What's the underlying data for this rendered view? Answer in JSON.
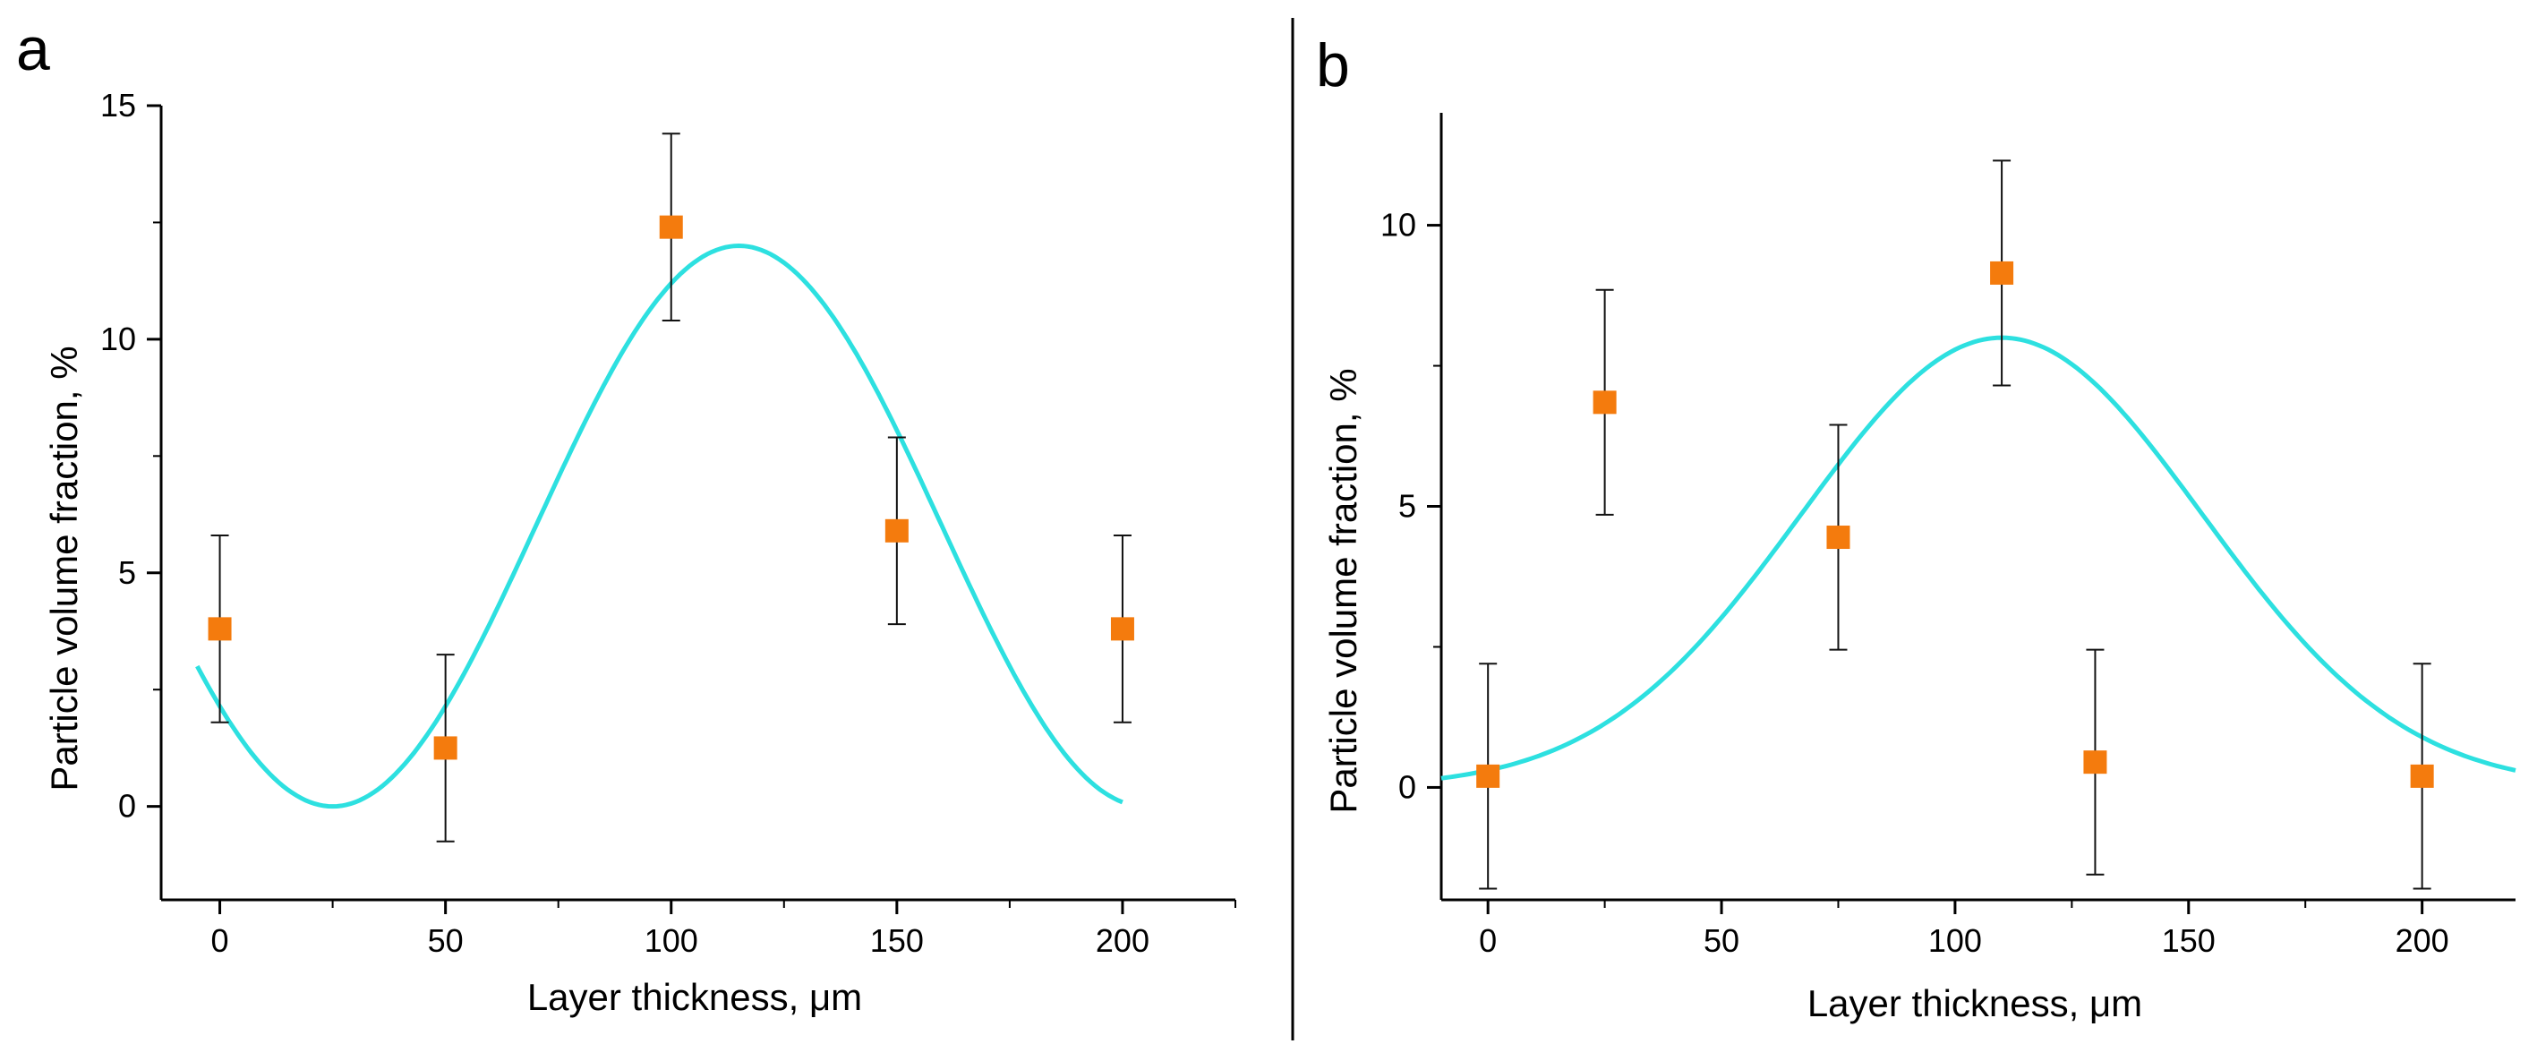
{
  "chart_data": [
    {
      "panel_label": "a",
      "type": "scatter",
      "xlabel": "Layer thickness, μm",
      "ylabel": "Particle volume fraction, %",
      "xlim": [
        -13,
        225
      ],
      "ylim": [
        -2,
        15
      ],
      "xticks": [
        0,
        50,
        100,
        150,
        200
      ],
      "yticks": [
        0,
        5,
        10,
        15
      ],
      "grid": false,
      "points": [
        {
          "x": 0,
          "y": 3.8,
          "err": 2.0
        },
        {
          "x": 50,
          "y": 1.25,
          "err": 2.0
        },
        {
          "x": 100,
          "y": 12.4,
          "err": 2.0
        },
        {
          "x": 150,
          "y": 5.9,
          "err": 2.0
        },
        {
          "x": 200,
          "y": 3.8,
          "err": 2.0
        }
      ],
      "fit": {
        "type": "gaussian-like",
        "x_range": [
          -5,
          200
        ],
        "y0": 0,
        "amplitude": 12,
        "center": 115,
        "width": 45,
        "minimum_at": 25
      }
    },
    {
      "panel_label": "b",
      "type": "scatter",
      "xlabel": "Layer thickness, μm",
      "ylabel": "Particle volume fraction, %",
      "xlim": [
        -10,
        220
      ],
      "ylim": [
        -2,
        12
      ],
      "xticks": [
        0,
        50,
        100,
        150,
        200
      ],
      "yticks": [
        0,
        5,
        10
      ],
      "grid": false,
      "points": [
        {
          "x": 0,
          "y": 0.2,
          "err": 2.0
        },
        {
          "x": 25,
          "y": 6.85,
          "err": 2.0
        },
        {
          "x": 75,
          "y": 4.45,
          "err": 2.0
        },
        {
          "x": 110,
          "y": 9.15,
          "err": 2.0
        },
        {
          "x": 130,
          "y": 0.45,
          "err": 2.0
        },
        {
          "x": 200,
          "y": 0.2,
          "err": 2.0
        }
      ],
      "fit": {
        "type": "gaussian",
        "x_range": [
          -10,
          220
        ],
        "y0": 0,
        "amplitude": 8,
        "center": 110,
        "width": 43
      }
    }
  ],
  "colors": {
    "marker": "#f47b0d",
    "fit": "#2de0e0",
    "axis": "#000000",
    "errorbar": "#111111",
    "divider": "#000000"
  }
}
